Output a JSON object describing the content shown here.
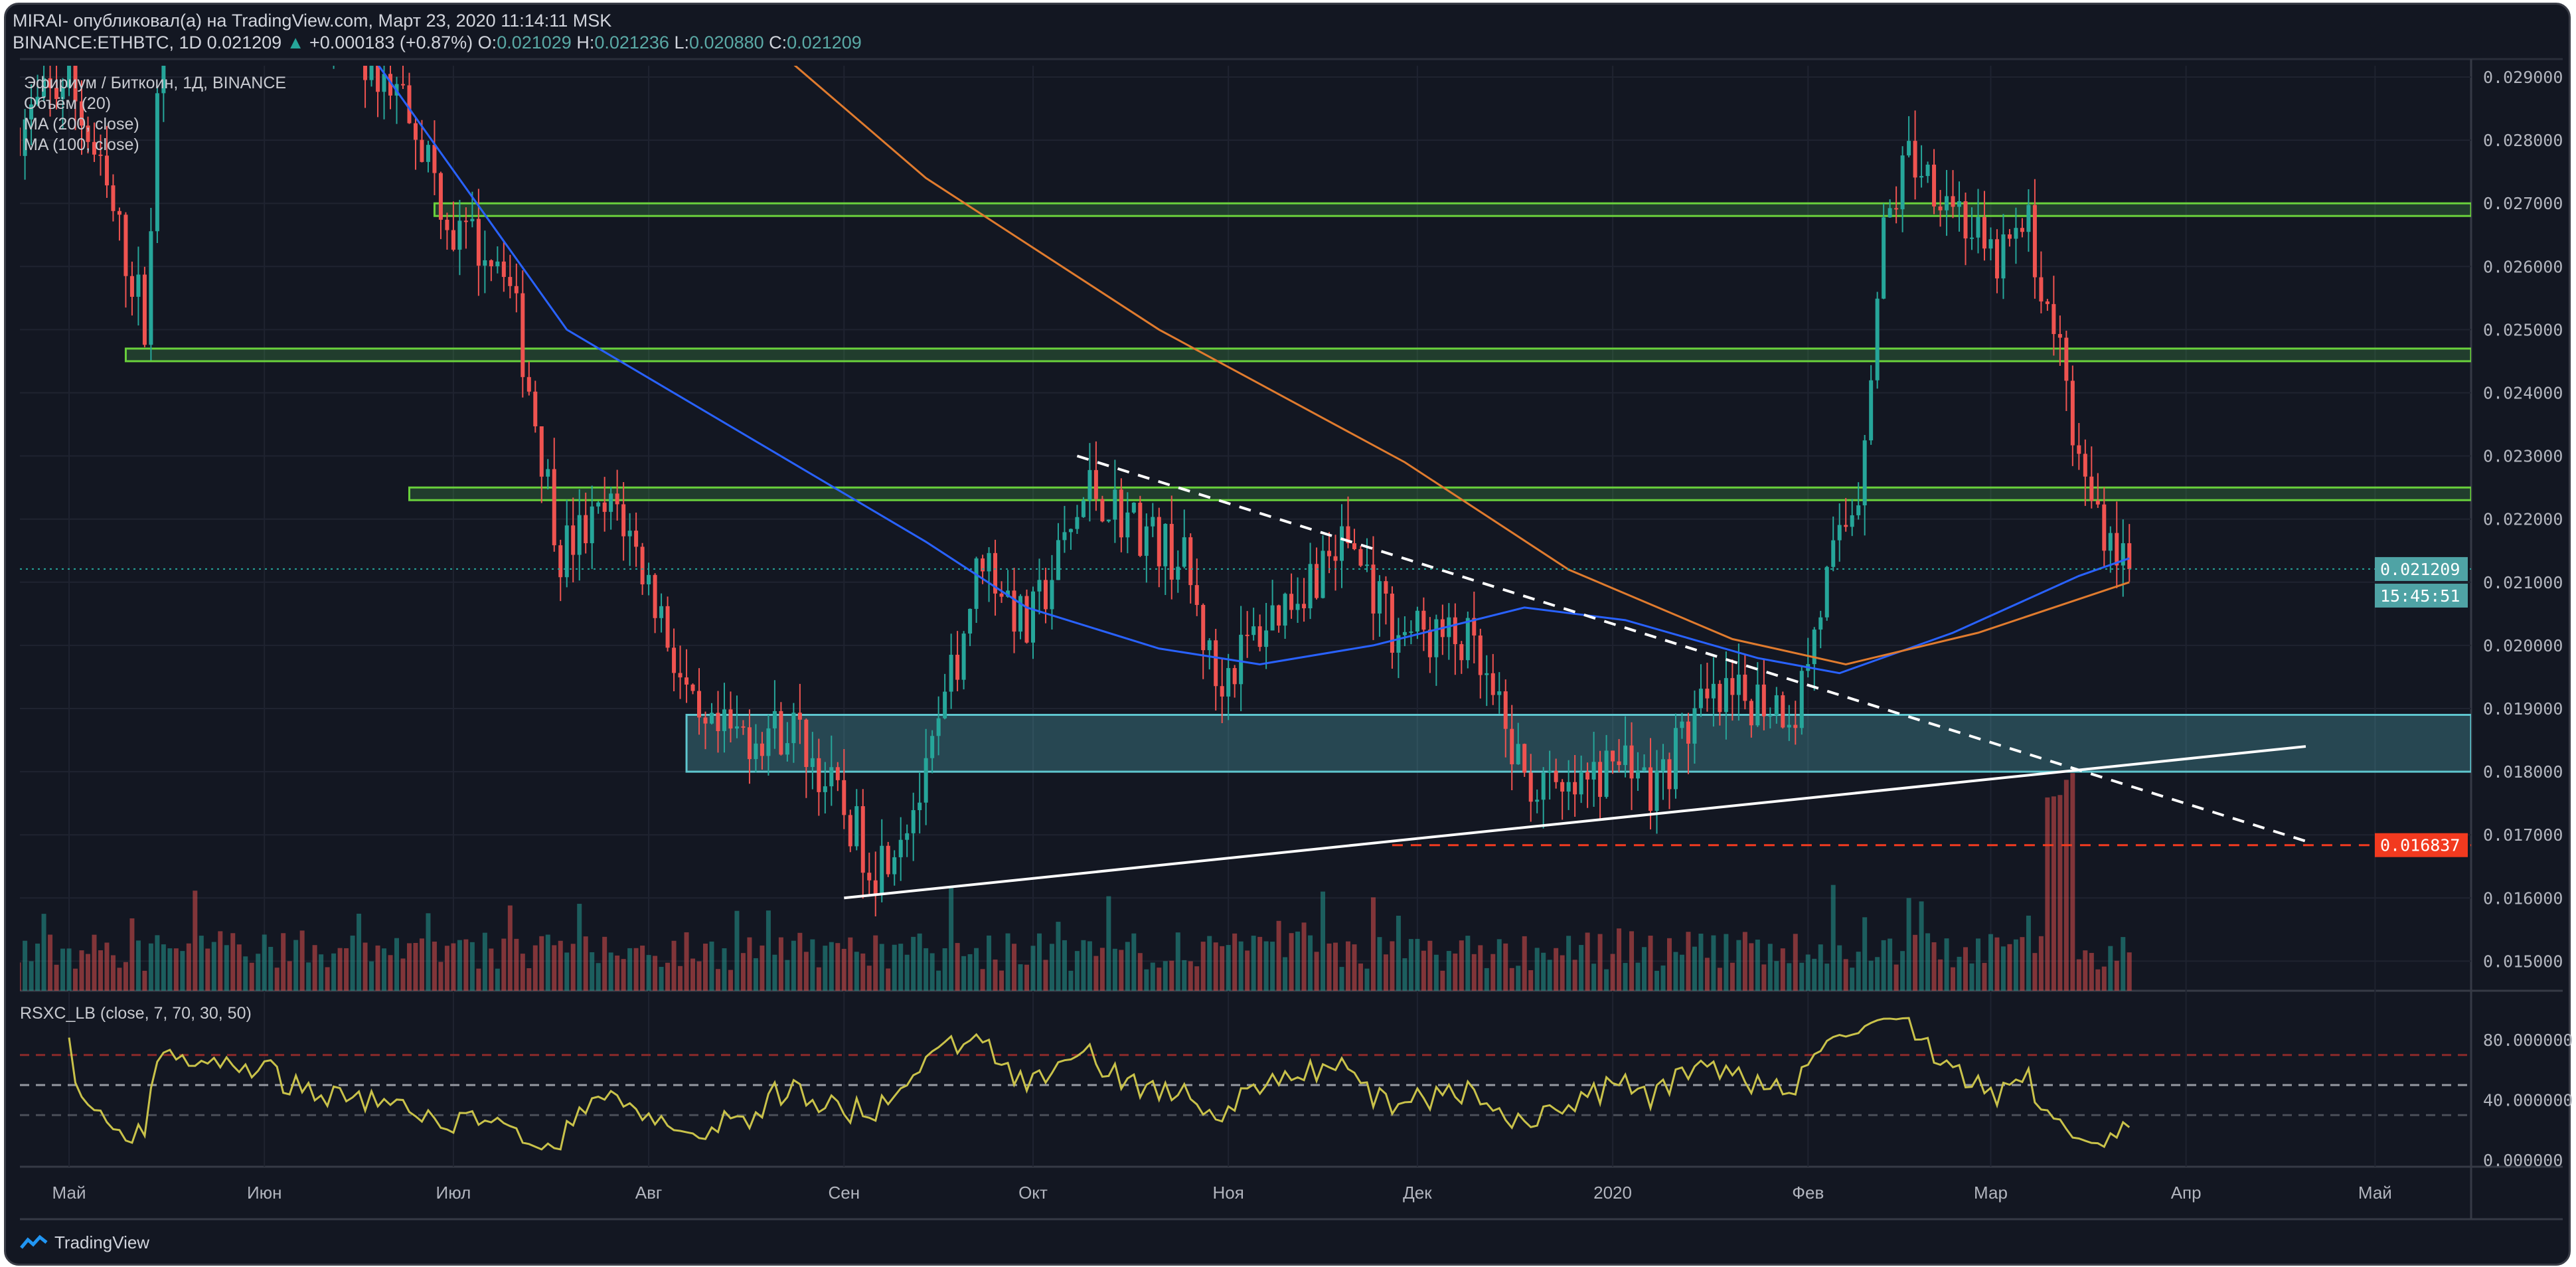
{
  "header": {
    "published": "MIRAI- опубликовал(а) на TradingView.com, Март 23, 2020 11:14:11 MSK",
    "symbol": "BINANCE:ETHBTC, 1D",
    "last": "0.021209",
    "change": "+0.000183 (+0.87%)",
    "o_label": "O:",
    "o": "0.021029",
    "h_label": "H:",
    "h": "0.021236",
    "l_label": "L:",
    "l": "0.020880",
    "c_label": "C:",
    "c": "0.021209"
  },
  "legend": {
    "title": "Эфириум / Биткоин, 1Д, BINANCE",
    "volume": "Объём (20)",
    "ma200": "MA (200, close)",
    "ma100": "MA (100, close)"
  },
  "footer": {
    "brand": "TradingView"
  },
  "colors": {
    "bg": "#131722",
    "up": "#26a69a",
    "down": "#ef5350",
    "ma100": "#2962ff",
    "ma200": "#e07b2e",
    "zone": "#4caf50",
    "box": "#5fc6cf",
    "rsi": "#c9c24a",
    "alert": "#f23a1f"
  },
  "chart_data": [
    {
      "type": "candlestick",
      "title": "Эфириум / Биткоин, 1Д, BINANCE",
      "ylim": [
        0.0145,
        0.0295
      ],
      "y_ticks": [
        "0.029000",
        "0.028000",
        "0.027000",
        "0.026000",
        "0.025000",
        "0.024000",
        "0.023000",
        "0.022000",
        "0.021000",
        "0.020000",
        "0.019000",
        "0.018000",
        "0.017000",
        "0.016000",
        "0.015000"
      ],
      "x_ticks": [
        {
          "date": "2019-05-01",
          "label": "Май"
        },
        {
          "date": "2019-06-01",
          "label": "Июн"
        },
        {
          "date": "2019-07-01",
          "label": "Июл"
        },
        {
          "date": "2019-08-01",
          "label": "Авг"
        },
        {
          "date": "2019-09-01",
          "label": "Сен"
        },
        {
          "date": "2019-10-01",
          "label": "Окт"
        },
        {
          "date": "2019-11-01",
          "label": "Ноя"
        },
        {
          "date": "2019-12-01",
          "label": "Дек"
        },
        {
          "date": "2020-01-01",
          "label": "2020"
        },
        {
          "date": "2020-02-01",
          "label": "Фев"
        },
        {
          "date": "2020-03-01",
          "label": "Мар"
        },
        {
          "date": "2020-04-01",
          "label": "Апр"
        },
        {
          "date": "2020-05-01",
          "label": "Май"
        }
      ],
      "price_path": [
        [
          "2019-04-23",
          0.0282
        ],
        [
          "2019-05-01",
          0.029
        ],
        [
          "2019-05-08",
          0.0268
        ],
        [
          "2019-05-13",
          0.0252
        ],
        [
          "2019-05-16",
          0.03
        ],
        [
          "2019-06-01",
          0.031
        ],
        [
          "2019-06-24",
          0.0286
        ],
        [
          "2019-07-01",
          0.0265
        ],
        [
          "2019-07-09",
          0.0262
        ],
        [
          "2019-07-14",
          0.0236
        ],
        [
          "2019-07-18",
          0.0215
        ],
        [
          "2019-07-27",
          0.0222
        ],
        [
          "2019-08-03",
          0.0205
        ],
        [
          "2019-08-09",
          0.0185
        ],
        [
          "2019-08-24",
          0.0187
        ],
        [
          "2019-09-06",
          0.0165
        ],
        [
          "2019-09-14",
          0.0178
        ],
        [
          "2019-09-23",
          0.0215
        ],
        [
          "2019-09-30",
          0.0202
        ],
        [
          "2019-10-10",
          0.0225
        ],
        [
          "2019-10-25",
          0.0213
        ],
        [
          "2019-10-30",
          0.0194
        ],
        [
          "2019-11-09",
          0.0206
        ],
        [
          "2019-11-20",
          0.0217
        ],
        [
          "2019-11-27",
          0.0203
        ],
        [
          "2019-12-09",
          0.02
        ],
        [
          "2019-12-18",
          0.0179
        ],
        [
          "2019-12-24",
          0.0175
        ],
        [
          "2020-01-04",
          0.0183
        ],
        [
          "2020-01-07",
          0.0176
        ],
        [
          "2020-01-14",
          0.0189
        ],
        [
          "2020-01-24",
          0.0192
        ],
        [
          "2020-01-30",
          0.019
        ],
        [
          "2020-02-04",
          0.021
        ],
        [
          "2020-02-09",
          0.0225
        ],
        [
          "2020-02-13",
          0.0265
        ],
        [
          "2020-02-17",
          0.0278
        ],
        [
          "2020-02-24",
          0.0271
        ],
        [
          "2020-03-01",
          0.026
        ],
        [
          "2020-03-07",
          0.0266
        ],
        [
          "2020-03-12",
          0.0245
        ],
        [
          "2020-03-16",
          0.0225
        ],
        [
          "2020-03-23",
          0.021209
        ]
      ],
      "ma100": [
        [
          "2019-06-19",
          0.0292
        ],
        [
          "2019-07-19",
          0.025
        ],
        [
          "2019-09-14",
          0.02164
        ],
        [
          "2019-09-30",
          0.0206
        ],
        [
          "2019-10-21",
          0.01995
        ],
        [
          "2019-11-06",
          0.0197
        ],
        [
          "2019-11-24",
          0.02
        ],
        [
          "2019-12-18",
          0.0206
        ],
        [
          "2020-01-03",
          0.0204
        ],
        [
          "2020-01-24",
          0.0198
        ],
        [
          "2020-02-06",
          0.01956
        ],
        [
          "2020-02-24",
          0.0202
        ],
        [
          "2020-03-15",
          0.0211
        ],
        [
          "2020-03-23",
          0.02138
        ]
      ],
      "ma200": [
        [
          "2019-08-24",
          0.0292
        ],
        [
          "2019-09-14",
          0.0274
        ],
        [
          "2019-10-21",
          0.025
        ],
        [
          "2019-11-29",
          0.0229
        ],
        [
          "2019-12-25",
          0.0212
        ],
        [
          "2020-01-20",
          0.0201
        ],
        [
          "2020-02-07",
          0.0197
        ],
        [
          "2020-02-28",
          0.0202
        ],
        [
          "2020-03-23",
          0.021
        ]
      ],
      "zones": [
        {
          "from": "2019-06-28",
          "low": 0.0268,
          "high": 0.027
        },
        {
          "from": "2019-05-10",
          "low": 0.0245,
          "high": 0.0247
        },
        {
          "from": "2019-06-24",
          "low": 0.0223,
          "high": 0.0225
        }
      ],
      "range_box": {
        "from": "2019-08-07",
        "low": 0.018,
        "high": 0.0189
      },
      "support_line": {
        "from": [
          "2019-09-01",
          0.016
        ],
        "to": [
          "2020-04-20",
          0.0184
        ]
      },
      "resistance_line": {
        "from": [
          "2019-10-08",
          0.023
        ],
        "to": [
          "2020-04-20",
          0.0169
        ]
      },
      "alert_level": {
        "from": "2019-11-27",
        "value": 0.016837,
        "label": "0.016837"
      },
      "last_price_label": "0.021209",
      "countdown_label": "15:45:51"
    },
    {
      "type": "line",
      "title": "RSXC_LB (close, 7, 70, 30, 50)",
      "ylim": [
        0,
        100
      ],
      "y_ticks": [
        "80.000000",
        "40.000000",
        "0.000000"
      ],
      "levels": [
        70,
        50,
        30
      ]
    }
  ]
}
